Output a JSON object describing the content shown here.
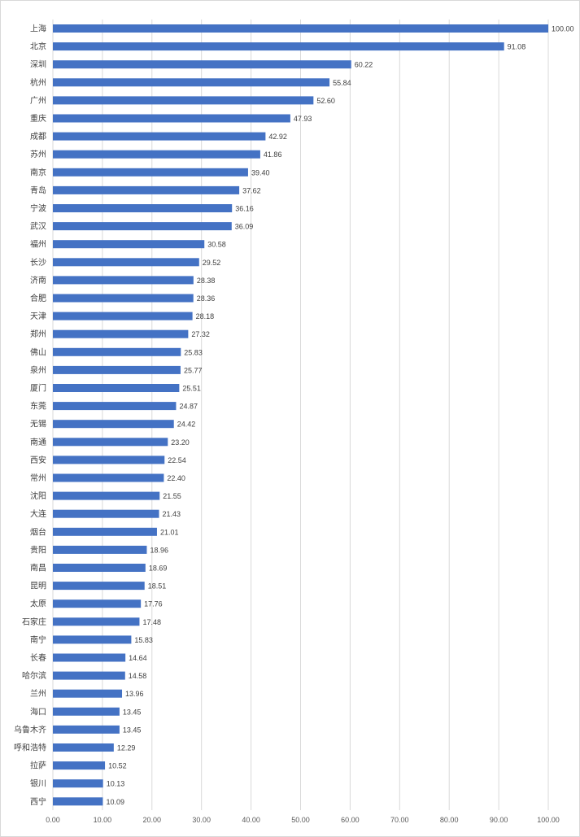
{
  "chart_data": {
    "type": "bar",
    "orientation": "horizontal",
    "categories": [
      "上海",
      "北京",
      "深圳",
      "杭州",
      "广州",
      "重庆",
      "成都",
      "苏州",
      "南京",
      "青岛",
      "宁波",
      "武汉",
      "福州",
      "长沙",
      "济南",
      "合肥",
      "天津",
      "郑州",
      "佛山",
      "泉州",
      "厦门",
      "东莞",
      "无锡",
      "南通",
      "西安",
      "常州",
      "沈阳",
      "大连",
      "烟台",
      "贵阳",
      "南昌",
      "昆明",
      "太原",
      "石家庄",
      "南宁",
      "长春",
      "哈尔滨",
      "兰州",
      "海口",
      "乌鲁木齐",
      "呼和浩特",
      "拉萨",
      "银川",
      "西宁"
    ],
    "values": [
      100.0,
      91.08,
      60.22,
      55.84,
      52.6,
      47.93,
      42.92,
      41.86,
      39.4,
      37.62,
      36.16,
      36.09,
      30.58,
      29.52,
      28.38,
      28.36,
      28.18,
      27.32,
      25.83,
      25.77,
      25.51,
      24.87,
      24.42,
      23.2,
      22.54,
      22.4,
      21.55,
      21.43,
      21.01,
      18.96,
      18.69,
      18.51,
      17.76,
      17.48,
      15.83,
      14.64,
      14.58,
      13.96,
      13.45,
      13.45,
      12.29,
      10.52,
      10.13,
      10.09
    ],
    "value_labels": [
      "100.00",
      "91.08",
      "60.22",
      "55.84",
      "52.60",
      "47.93",
      "42.92",
      "41.86",
      "39.40",
      "37.62",
      "36.16",
      "36.09",
      "30.58",
      "29.52",
      "28.38",
      "28.36",
      "28.18",
      "27.32",
      "25.83",
      "25.77",
      "25.51",
      "24.87",
      "24.42",
      "23.20",
      "22.54",
      "22.40",
      "21.55",
      "21.43",
      "21.01",
      "18.96",
      "18.69",
      "18.51",
      "17.76",
      "17.48",
      "15.83",
      "14.64",
      "14.58",
      "13.96",
      "13.45",
      "13.45",
      "12.29",
      "10.52",
      "10.13",
      "10.09"
    ],
    "xlim": [
      0,
      100
    ],
    "x_ticks": [
      0,
      10,
      20,
      30,
      40,
      50,
      60,
      70,
      80,
      90,
      100
    ],
    "x_tick_labels": [
      "0.00",
      "10.00",
      "20.00",
      "30.00",
      "40.00",
      "50.00",
      "60.00",
      "70.00",
      "80.00",
      "90.00",
      "100.00"
    ],
    "grid": "vertical",
    "legend": "none",
    "bar_color": "#4472c4",
    "grid_color": "#d9d9d9",
    "title": "",
    "xlabel": "",
    "ylabel": ""
  }
}
